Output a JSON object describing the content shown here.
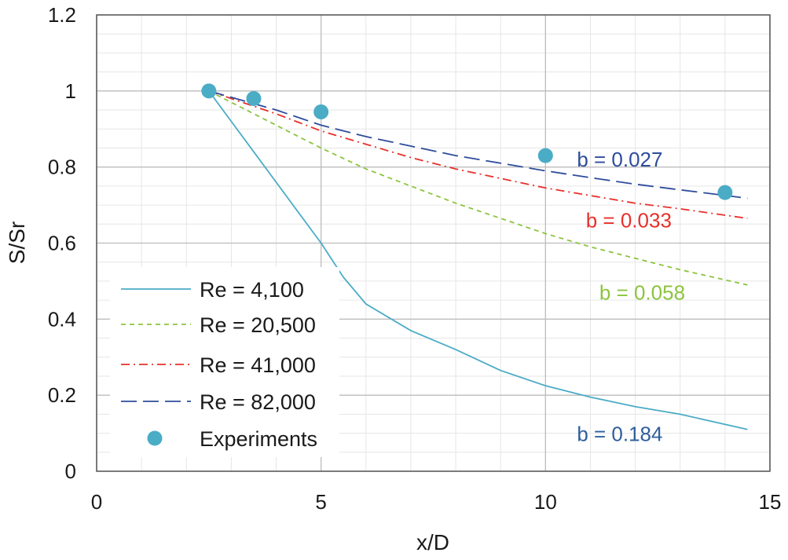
{
  "chart_data": {
    "type": "line",
    "title": "",
    "xlabel": "x/D",
    "ylabel": "S/Sr",
    "xlim": [
      0,
      15
    ],
    "ylim": [
      0,
      1.2
    ],
    "x_major_ticks": [
      0,
      5,
      10,
      15
    ],
    "y_major_ticks": [
      0,
      0.2,
      0.4,
      0.6,
      0.8,
      1,
      1.2
    ],
    "y_tick_labels": [
      "0",
      "0.2",
      "0.4",
      "0.6",
      "0.8",
      "1",
      "1.2"
    ],
    "x_tick_labels": [
      "0",
      "5",
      "10",
      "15"
    ],
    "grid": true,
    "legend_position": "left",
    "series": [
      {
        "name": "Re = 4,100",
        "color": "#4bacc6",
        "dash": "solid",
        "x": [
          2.5,
          3,
          3.5,
          4,
          4.5,
          5,
          5.5,
          6,
          7,
          8,
          9,
          10,
          11,
          12,
          13,
          14.5
        ],
        "y": [
          1.0,
          0.92,
          0.84,
          0.76,
          0.68,
          0.6,
          0.51,
          0.44,
          0.37,
          0.32,
          0.265,
          0.225,
          0.195,
          0.17,
          0.15,
          0.11
        ]
      },
      {
        "name": "Re = 20,500",
        "color": "#8cc43e",
        "dash": "short-dash",
        "x": [
          2.5,
          4,
          5,
          6,
          7,
          8,
          9,
          10,
          11,
          12,
          13,
          14.5
        ],
        "y": [
          1.0,
          0.91,
          0.85,
          0.795,
          0.75,
          0.705,
          0.665,
          0.625,
          0.59,
          0.56,
          0.53,
          0.49
        ]
      },
      {
        "name": "Re = 41,000",
        "color": "#e8302a",
        "dash": "dash-dot",
        "x": [
          2.5,
          4,
          5,
          6,
          7,
          8,
          9,
          10,
          11,
          12,
          13,
          14.5
        ],
        "y": [
          1.0,
          0.94,
          0.895,
          0.86,
          0.825,
          0.795,
          0.77,
          0.745,
          0.725,
          0.705,
          0.69,
          0.665
        ]
      },
      {
        "name": "Re = 82,000",
        "color": "#2e4c9c",
        "dash": "long-dash",
        "x": [
          2.5,
          4,
          5,
          6,
          7,
          8,
          9,
          10,
          11,
          12,
          13,
          14.5
        ],
        "y": [
          1.0,
          0.95,
          0.91,
          0.88,
          0.855,
          0.83,
          0.81,
          0.79,
          0.772,
          0.755,
          0.74,
          0.718
        ]
      },
      {
        "name": "Experiments",
        "color": "#4bacc6",
        "marker": "circle",
        "x": [
          2.5,
          3.5,
          5,
          10,
          14
        ],
        "y": [
          1.0,
          0.98,
          0.945,
          0.83,
          0.733
        ]
      }
    ],
    "annotations": [
      {
        "text": "b = 0.027",
        "color": "#2e4c9c",
        "x": 10.7,
        "y": 0.82
      },
      {
        "text": "b = 0.033",
        "color": "#e8302a",
        "x": 10.9,
        "y": 0.66
      },
      {
        "text": "b = 0.058",
        "color": "#8cc43e",
        "x": 11.2,
        "y": 0.47
      },
      {
        "text": "b = 0.184",
        "color": "#2e5e9c",
        "x": 10.7,
        "y": 0.098
      }
    ]
  }
}
